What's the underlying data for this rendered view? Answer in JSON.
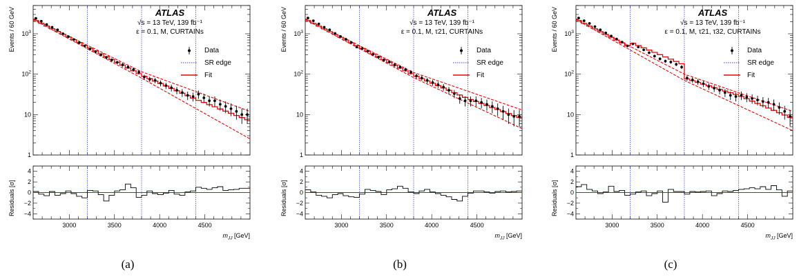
{
  "figure": {
    "panels": [
      {
        "caption": "(a)",
        "experiment": "ATLAS",
        "energy_line": "√s = 13 TeV, 139 fb⁻¹",
        "config_line": "ε = 0.1, M, CURTAINs"
      },
      {
        "caption": "(b)",
        "experiment": "ATLAS",
        "energy_line": "√s = 13 TeV, 139 fb⁻¹",
        "config_line": "ε = 0.1, M, τ21, CURTAINs"
      },
      {
        "caption": "(c)",
        "experiment": "ATLAS",
        "energy_line": "√s = 13 TeV, 139 fb⁻¹",
        "config_line": "ε = 0.1, M, τ21, τ32, CURTAINs"
      }
    ],
    "legend": {
      "data": "Data",
      "sr_edge": "SR edge",
      "fit": "Fit"
    },
    "colors": {
      "data": "#000000",
      "sr_edge": "#4040e0",
      "fit": "#ee0000",
      "residual_zero": "#ee0000"
    },
    "axes": {
      "xlabel": "m_JJ [GeV]",
      "ylabel_top": "Events / 60 GeV",
      "ylabel_bottom": "Residuals [σ]",
      "x_ticks": [
        "3000",
        "3500",
        "4000",
        "4500"
      ],
      "y_ticks_top": [
        "1",
        "10",
        "10²",
        "10³"
      ],
      "y_ticks_bottom": [
        "−4",
        "−2",
        "0",
        "2",
        "4"
      ]
    }
  },
  "chart_data": [
    {
      "type": "line",
      "panel": "a",
      "title": "ATLAS",
      "xlabel": "m_JJ [GeV]",
      "ylabel": "Events / 60 GeV",
      "xlim": [
        2600,
        5000
      ],
      "ylim": [
        1,
        5000
      ],
      "yscale": "log",
      "sr_edges": [
        3200,
        3800,
        4400
      ],
      "fit": {
        "x": [
          2600,
          3200,
          3800,
          4400,
          5000
        ],
        "y": [
          2300,
          480,
          95,
          24,
          7
        ]
      },
      "fit_band": {
        "x": [
          2600,
          3800,
          5000
        ],
        "upper": [
          2350,
          115,
          12
        ],
        "lower": [
          2250,
          80,
          2.5
        ]
      },
      "series": [
        {
          "name": "Data",
          "x": [
            2630,
            2690,
            2750,
            2810,
            2870,
            2930,
            2990,
            3050,
            3110,
            3170,
            3230,
            3290,
            3350,
            3410,
            3470,
            3530,
            3590,
            3650,
            3710,
            3770,
            3830,
            3890,
            3950,
            4010,
            4070,
            4130,
            4190,
            4250,
            4310,
            4370,
            4430,
            4490,
            4550,
            4610,
            4670,
            4730,
            4790,
            4850,
            4910,
            4970
          ],
          "y": [
            2400,
            2050,
            1700,
            1450,
            1250,
            1000,
            850,
            720,
            600,
            500,
            420,
            360,
            300,
            260,
            225,
            195,
            170,
            150,
            130,
            112,
            85,
            75,
            70,
            60,
            52,
            46,
            40,
            35,
            30,
            28,
            32,
            26,
            22,
            22,
            18,
            16,
            14,
            12,
            10,
            10
          ]
        }
      ],
      "residuals": {
        "x": [
          2600,
          2660,
          2720,
          2780,
          2840,
          2900,
          2960,
          3020,
          3080,
          3140,
          3200,
          3260,
          3320,
          3380,
          3440,
          3500,
          3560,
          3620,
          3680,
          3740,
          3800,
          3860,
          3920,
          3980,
          4040,
          4100,
          4160,
          4220,
          4280,
          4340,
          4400,
          4460,
          4520,
          4580,
          4640,
          4700,
          4760,
          4820,
          4880,
          4940
        ],
        "values": [
          0.2,
          -0.3,
          -0.6,
          0.2,
          -0.5,
          -0.2,
          0.3,
          -0.2,
          -0.7,
          -1.0,
          0.4,
          0.3,
          -0.4,
          -1.6,
          -0.5,
          0.3,
          0.5,
          1.6,
          0.9,
          -0.9,
          -0.5,
          0.3,
          -0.2,
          -0.4,
          -0.1,
          0.4,
          -0.3,
          -0.5,
          0.1,
          0.3,
          1.0,
          0.8,
          0.6,
          0.9,
          1.1,
          0.4,
          0.5,
          0.6,
          0.8,
          0.8
        ],
        "ylim": [
          -5,
          5
        ]
      }
    },
    {
      "type": "line",
      "panel": "b",
      "title": "ATLAS",
      "xlabel": "m_JJ [GeV]",
      "ylabel": "Events / 60 GeV",
      "xlim": [
        2600,
        5000
      ],
      "ylim": [
        1,
        5000
      ],
      "yscale": "log",
      "sr_edges": [
        3200,
        3800,
        4400
      ],
      "fit": {
        "x": [
          2600,
          3200,
          3800,
          4400,
          5000
        ],
        "y": [
          2300,
          470,
          95,
          25,
          8
        ]
      },
      "fit_band": {
        "x": [
          2600,
          3800,
          5000
        ],
        "upper": [
          2350,
          110,
          13
        ],
        "lower": [
          2250,
          82,
          4.5
        ]
      },
      "series": [
        {
          "name": "Data",
          "x": [
            2630,
            2690,
            2750,
            2810,
            2870,
            2930,
            2990,
            3050,
            3110,
            3170,
            3230,
            3290,
            3350,
            3410,
            3470,
            3530,
            3590,
            3650,
            3710,
            3770,
            3830,
            3890,
            3950,
            4010,
            4070,
            4130,
            4190,
            4250,
            4310,
            4370,
            4430,
            4490,
            4550,
            4610,
            4670,
            4730,
            4790,
            4850,
            4910,
            4970
          ],
          "y": [
            2450,
            2100,
            1750,
            1450,
            1250,
            1020,
            860,
            730,
            610,
            470,
            430,
            370,
            310,
            265,
            225,
            200,
            170,
            150,
            130,
            112,
            90,
            80,
            70,
            62,
            55,
            48,
            40,
            33,
            25,
            22,
            22,
            22,
            20,
            18,
            16,
            14,
            12,
            10,
            9,
            9
          ]
        }
      ],
      "residuals": {
        "x": [
          2600,
          2660,
          2720,
          2780,
          2840,
          2900,
          2960,
          3020,
          3080,
          3140,
          3200,
          3260,
          3320,
          3380,
          3440,
          3500,
          3560,
          3620,
          3680,
          3740,
          3800,
          3860,
          3920,
          3980,
          4040,
          4100,
          4160,
          4220,
          4280,
          4340,
          4400,
          4460,
          4520,
          4580,
          4640,
          4700,
          4760,
          4820,
          4880,
          4940
        ],
        "values": [
          0.5,
          0.1,
          -0.5,
          -0.7,
          -1.0,
          -0.4,
          -0.2,
          -0.6,
          -0.8,
          -0.9,
          -0.3,
          0.6,
          0.4,
          0.2,
          -0.4,
          0.5,
          0.7,
          1.2,
          0.8,
          0.1,
          -0.2,
          0.3,
          0.6,
          0.1,
          -0.2,
          -0.5,
          -0.8,
          -1.3,
          -1.6,
          -0.7,
          -0.1,
          0.3,
          0.3,
          0.1,
          -0.1,
          0.2,
          0.3,
          0.1,
          0.2,
          0.3
        ],
        "ylim": [
          -5,
          5
        ]
      }
    },
    {
      "type": "line",
      "panel": "c",
      "title": "ATLAS",
      "xlabel": "m_JJ [GeV]",
      "ylabel": "Events / 60 GeV",
      "xlim": [
        2600,
        5000
      ],
      "ylim": [
        1,
        5000
      ],
      "yscale": "log",
      "sr_edges": [
        3200,
        3800,
        4400
      ],
      "fit": {
        "x": [
          2600,
          3200,
          3200,
          3800,
          3800,
          4400,
          5000
        ],
        "y": [
          2300,
          470,
          620,
          170,
          80,
          30,
          8
        ]
      },
      "fit_band": {
        "x": [
          2600,
          3800,
          5000
        ],
        "upper": [
          2350,
          100,
          12
        ],
        "lower": [
          2250,
          70,
          4
        ]
      },
      "series": [
        {
          "name": "Data",
          "x": [
            2630,
            2690,
            2750,
            2810,
            2870,
            2930,
            2990,
            3050,
            3110,
            3170,
            3230,
            3290,
            3350,
            3410,
            3470,
            3530,
            3590,
            3650,
            3710,
            3770,
            3830,
            3890,
            3950,
            4010,
            4070,
            4130,
            4190,
            4250,
            4310,
            4370,
            4430,
            4490,
            4550,
            4610,
            4670,
            4730,
            4790,
            4850,
            4910,
            4970
          ],
          "y": [
            2450,
            2100,
            1800,
            1500,
            1250,
            1050,
            880,
            740,
            620,
            500,
            560,
            470,
            400,
            340,
            280,
            240,
            210,
            200,
            175,
            150,
            80,
            72,
            65,
            58,
            50,
            45,
            40,
            35,
            30,
            28,
            30,
            27,
            25,
            23,
            21,
            20,
            18,
            15,
            12,
            9
          ]
        }
      ],
      "residuals": {
        "x": [
          2600,
          2660,
          2720,
          2780,
          2840,
          2900,
          2960,
          3020,
          3080,
          3140,
          3200,
          3260,
          3320,
          3380,
          3440,
          3500,
          3560,
          3620,
          3680,
          3740,
          3800,
          3860,
          3920,
          3980,
          4040,
          4100,
          4160,
          4220,
          4280,
          4340,
          4400,
          4460,
          4520,
          4580,
          4640,
          4700,
          4760,
          4820,
          4880,
          4940
        ],
        "values": [
          1.1,
          1.5,
          0.6,
          0.3,
          -0.2,
          0.1,
          1.2,
          0.2,
          0.4,
          -0.5,
          -0.3,
          0.1,
          0.3,
          -0.6,
          -0.2,
          0.3,
          -1.8,
          0.6,
          0.2,
          0.2,
          -0.3,
          0.2,
          0.1,
          0.2,
          0.3,
          -0.6,
          -0.2,
          0.3,
          0.2,
          0.4,
          0.6,
          0.7,
          0.9,
          0.7,
          1.1,
          0.6,
          1.3,
          0.5,
          -0.7,
          0.3
        ],
        "ylim": [
          -5,
          5
        ]
      }
    }
  ]
}
